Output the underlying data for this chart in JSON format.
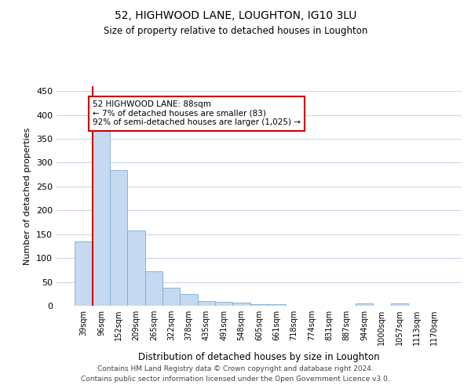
{
  "title1": "52, HIGHWOOD LANE, LOUGHTON, IG10 3LU",
  "title2": "Size of property relative to detached houses in Loughton",
  "xlabel": "Distribution of detached houses by size in Loughton",
  "ylabel": "Number of detached properties",
  "categories": [
    "39sqm",
    "96sqm",
    "152sqm",
    "209sqm",
    "265sqm",
    "322sqm",
    "378sqm",
    "435sqm",
    "491sqm",
    "548sqm",
    "605sqm",
    "661sqm",
    "718sqm",
    "774sqm",
    "831sqm",
    "887sqm",
    "944sqm",
    "1000sqm",
    "1057sqm",
    "1113sqm",
    "1170sqm"
  ],
  "values": [
    135,
    375,
    285,
    157,
    72,
    37,
    25,
    10,
    8,
    7,
    4,
    4,
    0,
    0,
    0,
    0,
    5,
    0,
    5,
    0,
    0
  ],
  "bar_color": "#c5d9f0",
  "bar_edge_color": "#7aadd4",
  "highlight_line_color": "#cc0000",
  "highlight_bar_index": 1,
  "annotation_text": "52 HIGHWOOD LANE: 88sqm\n← 7% of detached houses are smaller (83)\n92% of semi-detached houses are larger (1,025) →",
  "annotation_box_color": "#ffffff",
  "annotation_box_edge": "#cc0000",
  "ylim": [
    0,
    460
  ],
  "yticks": [
    0,
    50,
    100,
    150,
    200,
    250,
    300,
    350,
    400,
    450
  ],
  "footer1": "Contains HM Land Registry data © Crown copyright and database right 2024.",
  "footer2": "Contains public sector information licensed under the Open Government Licence v3.0.",
  "bg_color": "#ffffff",
  "grid_color": "#c8d4e8"
}
